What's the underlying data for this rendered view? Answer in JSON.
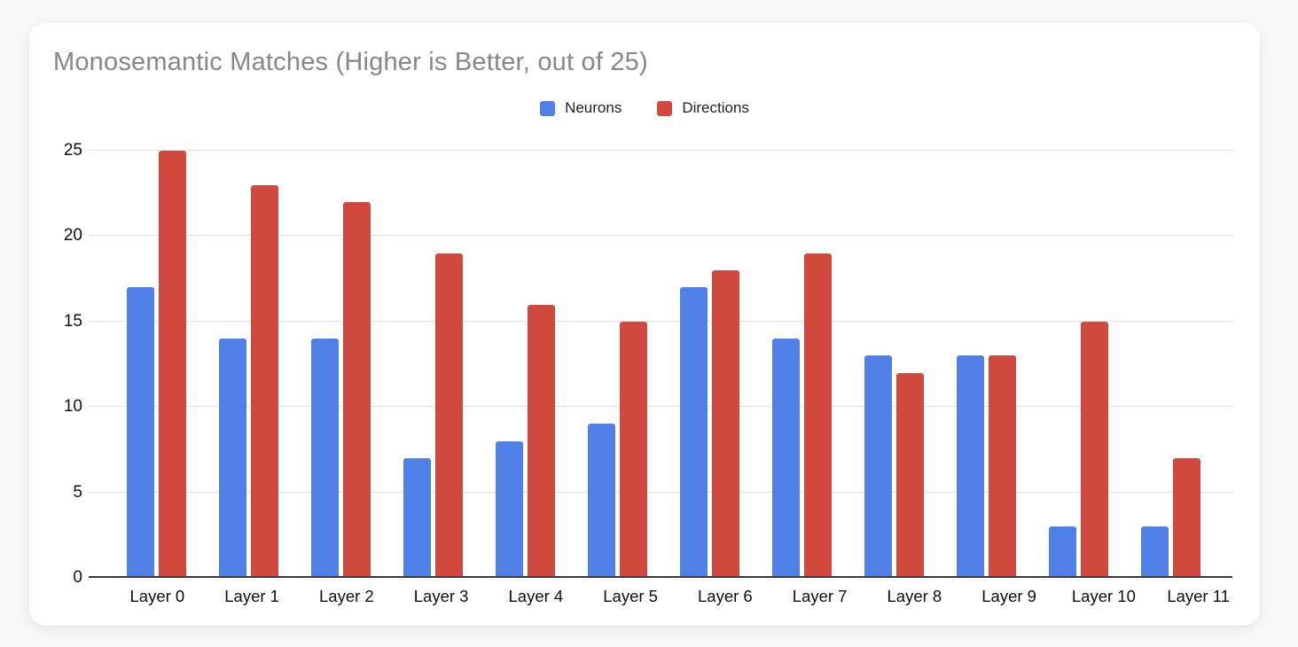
{
  "chart_data": {
    "type": "bar",
    "title": "Monosemantic Matches (Higher is Better, out of 25)",
    "categories": [
      "Layer 0",
      "Layer 1",
      "Layer 2",
      "Layer 3",
      "Layer 4",
      "Layer 5",
      "Layer 6",
      "Layer 7",
      "Layer 8",
      "Layer 9",
      "Layer 10",
      "Layer 11"
    ],
    "series": [
      {
        "name": "Neurons",
        "color": "#4f80e8",
        "values": [
          17,
          14,
          14,
          7,
          8,
          9,
          17,
          14,
          13,
          13,
          3,
          3
        ]
      },
      {
        "name": "Directions",
        "color": "#d0493c",
        "values": [
          25,
          23,
          22,
          19,
          16,
          15,
          18,
          19,
          12,
          13,
          15,
          7
        ]
      }
    ],
    "xlabel": "",
    "ylabel": "",
    "ylim": [
      0,
      25
    ],
    "yticks": [
      0,
      5,
      10,
      15,
      20,
      25
    ],
    "grid": true,
    "legend_position": "top-center",
    "colors": {
      "title_text": "#878787",
      "axis_text": "#111111",
      "gridline": "#e3e3e3",
      "zero_line": "#3c3c3c",
      "card_background": "#ffffff",
      "page_background": "#f8f8f9"
    }
  }
}
